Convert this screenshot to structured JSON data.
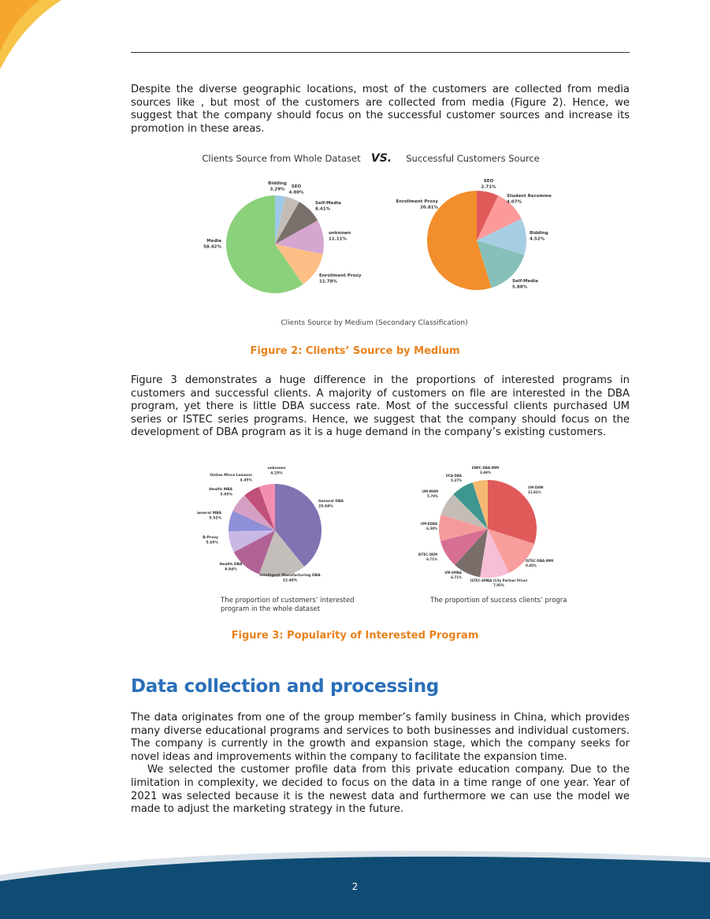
{
  "page": {
    "number": "2"
  },
  "paragraphs": {
    "p1": "Despite the diverse geographic locations, most of the customers are collected from media sources like , but most of the customers are collected from media (Figure 2). Hence, we suggest that the company should focus on the successful customer sources and increase its promotion in these areas.",
    "p2": "Figure 3 demonstrates a huge difference in the proportions of interested programs in customers and successful clients. A majority of customers on file are interested in the DBA program, yet there is little DBA success rate. Most of the successful clients purchased UM series or ISTEC series programs. Hence, we suggest that the company should focus on the development of DBA program as it is a huge demand in the company’s existing customers.",
    "p3": "The data originates from one of the group member’s family business in China, which provides many diverse educational programs and services to both businesses and individual customers. The company is currently in the growth and expansion stage, which the company seeks for novel ideas and improvements within the company to facilitate the expansion time.",
    "p4": "We selected the customer profile data from this private education company. Due to the limitation in complexity, we decided to focus on the data in a time range of one year. Year of 2021 was selected because it is the newest data and furthermore we can use the model we made to adjust the marketing strategy in the future."
  },
  "figures": {
    "fig2": {
      "left_title": "Clients Source from Whole Dataset",
      "vs": "VS.",
      "right_title": "Successful Customers Source",
      "subtitle": "Clients Source by Medium (Secondary Classification)",
      "caption": "Figure 2: Clients’ Source by Medium"
    },
    "fig3": {
      "left_caption_line1": "The proportion of customers’ interested",
      "left_caption_line2": "program in the whole dataset",
      "right_caption": "The proportion of success clients’ program",
      "caption": "Figure 3: Popularity of Interested Program"
    }
  },
  "section": {
    "heading": "Data collection and processing"
  },
  "colors": {
    "accent_orange": "#e8821c",
    "heading_blue": "#2a6fb8",
    "footer_navy": "#0f4c73"
  },
  "chart_data": [
    {
      "type": "pie",
      "title": "Clients Source from Whole Dataset",
      "categories": [
        "Bidding",
        "SEO",
        "Self-Media",
        "unknown",
        "Enrollment Proxy",
        "Media"
      ],
      "values": [
        3.29,
        4.8,
        8.41,
        11.11,
        11.78,
        58.42
      ],
      "labels": [
        "3.29%",
        "4.80%",
        "8.41%",
        "11.11%",
        "11.78%",
        "58.42%"
      ],
      "colors": [
        "#9ecae9",
        "#c4bdb7",
        "#7a706b",
        "#d5a6cf",
        "#fdbf85",
        "#8bd17c"
      ]
    },
    {
      "type": "pie",
      "title": "Successful Customers Source",
      "categories": [
        "SEO",
        "Student Recommend",
        "Bidding",
        "Self-Media",
        "Enrollment Proxy"
      ],
      "values": [
        2.71,
        4.07,
        4.52,
        5.88,
        20.81
      ],
      "labels": [
        "2.71%",
        "4.07%",
        "4.52%",
        "5.88%",
        "20.81%"
      ],
      "colors": [
        "#e05a5a",
        "#fb9a99",
        "#a6cee3",
        "#87c0b8",
        "#f28e2b"
      ]
    },
    {
      "type": "pie",
      "title": "The proportion of customers’ interested program in the whole dataset",
      "categories": [
        "General DBA",
        "Intelligent Manufacturing DBA",
        "Health DBA",
        "B-Proxy",
        "General MBA",
        "Health MBA",
        "Online Micro Lessons",
        "unknown"
      ],
      "values": [
        29.84,
        12.48,
        8.94,
        5.65,
        5.52,
        5.05,
        4.45,
        4.25
      ],
      "labels": [
        "29.84%",
        "12.48%",
        "8.94%",
        "5.65%",
        "5.52%",
        "5.05%",
        "4.45%",
        "4.25%"
      ],
      "colors": [
        "#8172b2",
        "#c4bebb",
        "#b26396",
        "#c9b8e6",
        "#8f8fd8",
        "#d59fc4",
        "#c0507a",
        "#f28fb0"
      ]
    },
    {
      "type": "pie",
      "title": "The proportion of success clients’ program",
      "categories": [
        "UM-DHM",
        "ISTEC-DBA-IMM",
        "ISTEC-EMBA (City Partner Price)",
        "UM-EMBA",
        "ISTEC-DEM",
        "UM-EDBA",
        "UM-MHM",
        "UCA-DBA",
        "ENPC-DBA-IMM"
      ],
      "values": [
        21.81,
        9.4,
        7.05,
        6.71,
        6.71,
        6.38,
        5.7,
        5.37,
        3.69
      ],
      "labels": [
        "21.81%",
        "9.40%",
        "7.05%",
        "6.71%",
        "6.71%",
        "6.38%",
        "5.70%",
        "5.37%",
        "3.69%"
      ],
      "colors": [
        "#e05a5a",
        "#f99d9d",
        "#f7bed6",
        "#7a6e6a",
        "#d66f93",
        "#f59a9a",
        "#c4bdb7",
        "#3e9690",
        "#f5b971"
      ]
    }
  ]
}
